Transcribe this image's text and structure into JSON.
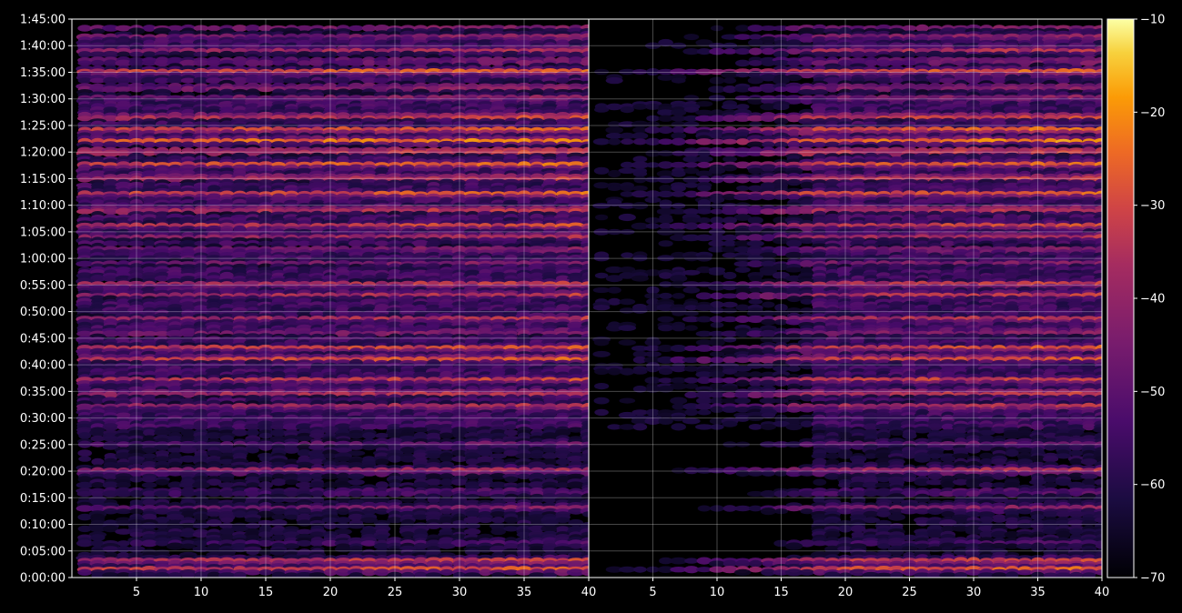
{
  "chart_data": {
    "type": "heatmap",
    "colormap": "inferno",
    "background": "#000000",
    "grid": true,
    "y_axis": {
      "min_seconds": 0,
      "max_seconds": 6300,
      "ticks": [
        "0:00:00",
        "0:05:00",
        "0:10:00",
        "0:15:00",
        "0:20:00",
        "0:25:00",
        "0:30:00",
        "0:35:00",
        "0:40:00",
        "0:45:00",
        "0:50:00",
        "0:55:00",
        "1:00:00",
        "1:05:00",
        "1:10:00",
        "1:15:00",
        "1:20:00",
        "1:25:00",
        "1:30:00",
        "1:35:00",
        "1:40:00",
        "1:45:00"
      ]
    },
    "panels": [
      {
        "x_range": [
          1,
          40
        ],
        "x_ticks": [
          "5",
          "10",
          "15",
          "20",
          "25",
          "30",
          "35",
          "40"
        ],
        "muted_low_x": false
      },
      {
        "x_range": [
          1,
          40
        ],
        "x_ticks": [
          "5",
          "10",
          "15",
          "20",
          "25",
          "30",
          "35",
          "40"
        ],
        "muted_low_x": true
      }
    ],
    "colorbar": {
      "min": -70,
      "max": -10,
      "ticks": [
        "−70",
        "−60",
        "−50",
        "−40",
        "−30",
        "−20",
        "−10"
      ]
    },
    "bands": [
      {
        "time": "0:01:30",
        "level": -30
      },
      {
        "time": "0:03:00",
        "level": -28
      },
      {
        "time": "0:06:30",
        "level": -55
      },
      {
        "time": "0:13:00",
        "level": -45
      },
      {
        "time": "0:16:00",
        "level": -50
      },
      {
        "time": "0:20:00",
        "level": -35
      },
      {
        "time": "0:25:00",
        "level": -50
      },
      {
        "time": "0:32:00",
        "level": -33
      },
      {
        "time": "0:34:30",
        "level": -30
      },
      {
        "time": "0:37:00",
        "level": -30
      },
      {
        "time": "0:41:00",
        "level": -26
      },
      {
        "time": "0:43:00",
        "level": -28
      },
      {
        "time": "0:46:00",
        "level": -40
      },
      {
        "time": "0:48:30",
        "level": -35
      },
      {
        "time": "0:53:00",
        "level": -35
      },
      {
        "time": "0:55:00",
        "level": -30
      },
      {
        "time": "0:59:00",
        "level": -45
      },
      {
        "time": "1:01:30",
        "level": -40
      },
      {
        "time": "1:04:00",
        "level": -35
      },
      {
        "time": "1:06:00",
        "level": -30
      },
      {
        "time": "1:09:00",
        "level": -28
      },
      {
        "time": "1:12:00",
        "level": -25
      },
      {
        "time": "1:15:00",
        "level": -28
      },
      {
        "time": "1:17:30",
        "level": -25
      },
      {
        "time": "1:20:00",
        "level": -24
      },
      {
        "time": "1:22:00",
        "level": -22
      },
      {
        "time": "1:24:00",
        "level": -22
      },
      {
        "time": "1:26:30",
        "level": -26
      },
      {
        "time": "1:30:00",
        "level": -40
      },
      {
        "time": "1:32:00",
        "level": -38
      },
      {
        "time": "1:35:00",
        "level": -25
      },
      {
        "time": "1:37:00",
        "level": -42
      },
      {
        "time": "1:39:00",
        "level": -35
      },
      {
        "time": "1:41:30",
        "level": -40
      },
      {
        "time": "1:43:30",
        "level": -40
      }
    ]
  }
}
